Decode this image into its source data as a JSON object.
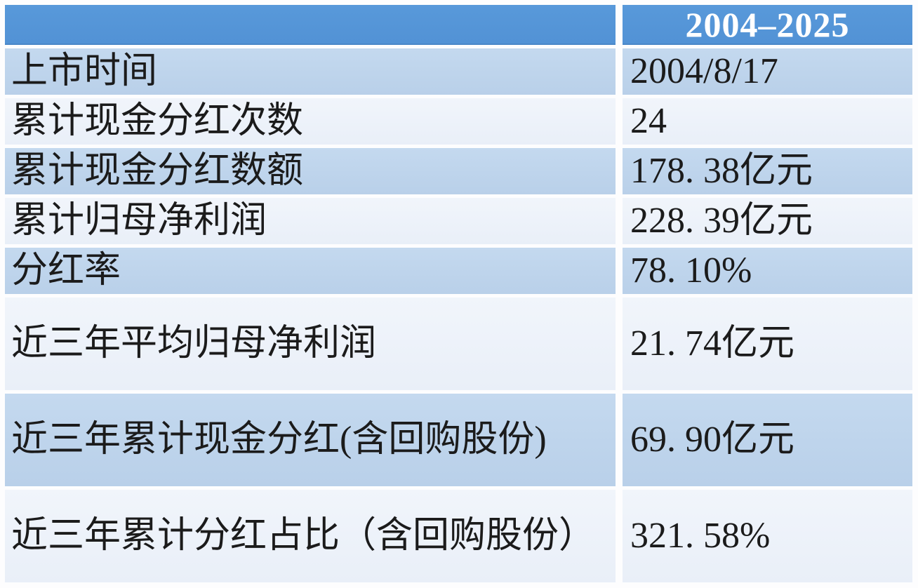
{
  "table": {
    "title_period": "2004–2025",
    "header": {
      "col_label": "",
      "col_value": "2004–2025"
    },
    "rows": [
      {
        "label": "上市时间",
        "value": "2004/8/17"
      },
      {
        "label": "累计现金分红次数",
        "value": "24"
      },
      {
        "label": "累计现金分红数额",
        "value": "178. 38亿元"
      },
      {
        "label": "累计归母净利润",
        "value": "228. 39亿元"
      },
      {
        "label": "分红率",
        "value": "78. 10%"
      },
      {
        "label": "近三年平均归母净利润",
        "value": "21. 74亿元"
      },
      {
        "label": "近三年累计现金分红(含回购股份)",
        "value": "69. 90亿元"
      },
      {
        "label": "近三年累计分红占比（含回购股份）",
        "value": "321. 58%"
      }
    ],
    "colors": {
      "header_bg": "#5596d8",
      "header_text": "#ffffff",
      "band_blue": "#bdd4ec",
      "band_light": "#ecf1f9",
      "separator": "#fdfdfe",
      "text": "#1b1b1b"
    }
  }
}
